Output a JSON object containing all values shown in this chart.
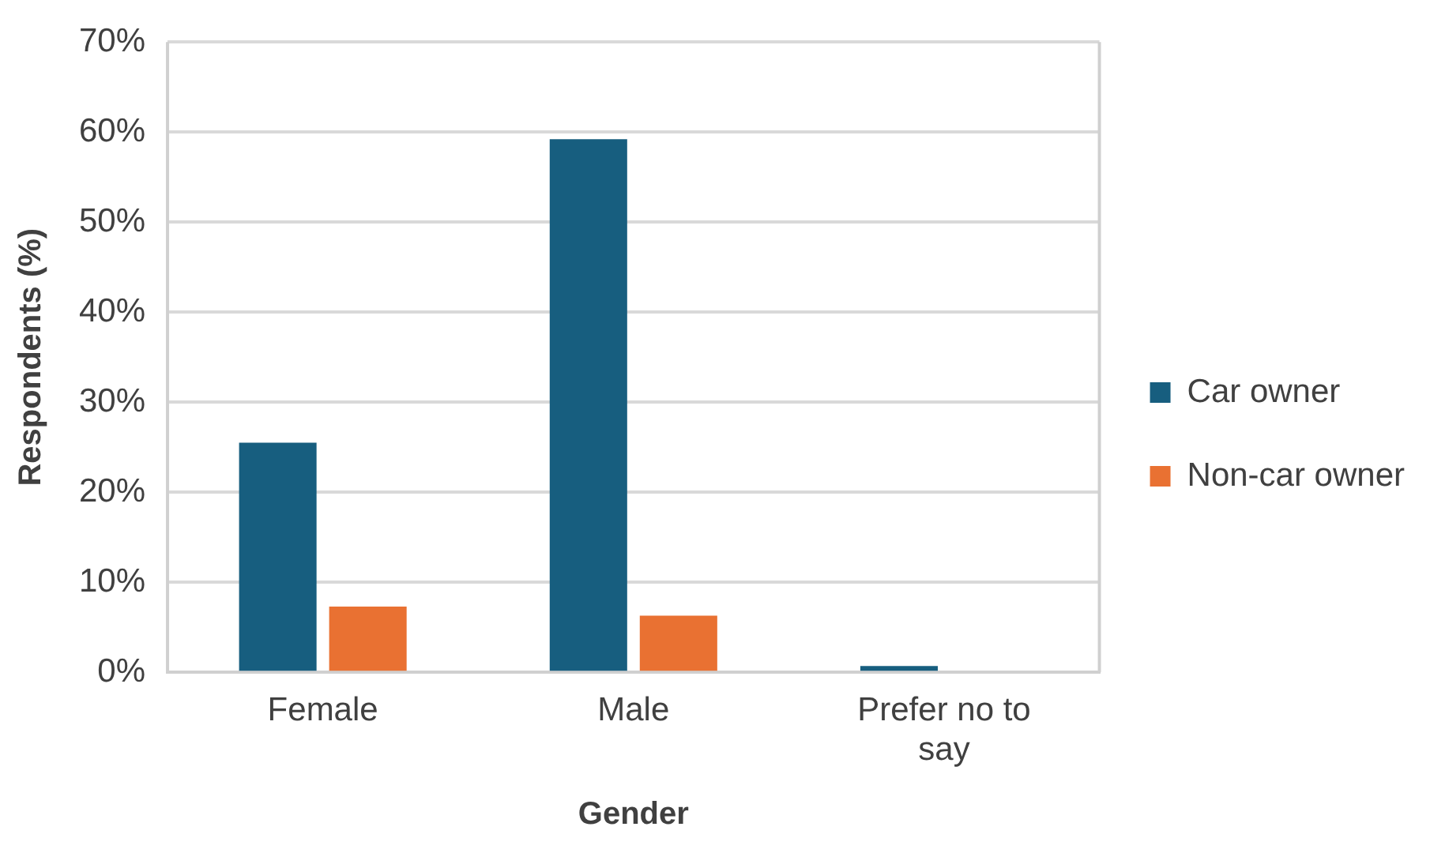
{
  "chart_data": {
    "type": "bar",
    "xlabel": "Gender",
    "ylabel": "Respondents (%)",
    "categories": [
      "Female",
      "Male",
      "Prefer no to say"
    ],
    "series": [
      {
        "name": "Car owner",
        "color": "#175e7f",
        "values": [
          25.5,
          59.2,
          0.7
        ]
      },
      {
        "name": "Non-car owner",
        "color": "#e97132",
        "values": [
          7.3,
          6.3,
          0
        ]
      }
    ],
    "ylim": [
      0,
      70
    ],
    "yticks": [
      {
        "value": 0,
        "label": "0%"
      },
      {
        "value": 10,
        "label": "10%"
      },
      {
        "value": 20,
        "label": "20%"
      },
      {
        "value": 30,
        "label": "30%"
      },
      {
        "value": 40,
        "label": "40%"
      },
      {
        "value": 50,
        "label": "50%"
      },
      {
        "value": 60,
        "label": "60%"
      },
      {
        "value": 70,
        "label": "70%"
      }
    ],
    "grid": "y",
    "legend": "right"
  }
}
